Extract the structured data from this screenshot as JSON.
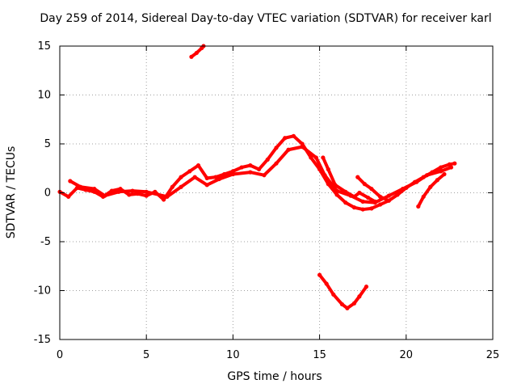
{
  "chart_data": {
    "type": "scatter",
    "title": "Day 259 of 2014, Sidereal Day-to-day VTEC variation (SDTVAR) for receiver karl",
    "xlabel": "GPS time / hours",
    "ylabel": "SDTVAR / TECUs",
    "xlim": [
      0,
      25
    ],
    "ylim": [
      -15,
      15
    ],
    "xticks": [
      0,
      5,
      10,
      15,
      20,
      25
    ],
    "yticks": [
      -15,
      -10,
      -5,
      0,
      5,
      10,
      15
    ],
    "xtick_labels": [
      "0",
      "5",
      "10",
      "15",
      "20",
      "25"
    ],
    "ytick_labels": [
      "-15",
      "-10",
      "-5",
      "0",
      "5",
      "10",
      "15"
    ],
    "grid": true,
    "legend": "none",
    "marker_color": "#ff0000",
    "series": [
      {
        "name": "main-track-a",
        "color": "#ff0000",
        "points": [
          [
            0,
            0.1
          ],
          [
            0.5,
            -0.4
          ],
          [
            1.0,
            0.5
          ],
          [
            1.5,
            0.3
          ],
          [
            2.0,
            0.1
          ],
          [
            2.5,
            -0.4
          ],
          [
            3.0,
            0.2
          ],
          [
            3.5,
            0.4
          ],
          [
            4.0,
            -0.2
          ],
          [
            4.5,
            -0.1
          ],
          [
            5.0,
            -0.3
          ],
          [
            5.5,
            0.1
          ],
          [
            6.0,
            -0.7
          ],
          [
            6.5,
            0.6
          ],
          [
            7.0,
            1.6
          ],
          [
            7.5,
            2.2
          ],
          [
            8.0,
            2.8
          ],
          [
            8.5,
            1.5
          ],
          [
            9.0,
            1.6
          ],
          [
            9.5,
            1.9
          ],
          [
            10.0,
            2.2
          ],
          [
            10.5,
            2.6
          ],
          [
            11.0,
            2.8
          ],
          [
            11.5,
            2.4
          ],
          [
            12.0,
            3.4
          ],
          [
            12.5,
            4.6
          ],
          [
            13.0,
            5.6
          ],
          [
            13.5,
            5.8
          ],
          [
            14.0,
            5.0
          ],
          [
            14.5,
            3.6
          ],
          [
            15.0,
            2.4
          ],
          [
            15.5,
            0.9
          ],
          [
            16.0,
            -0.2
          ],
          [
            16.5,
            -1.0
          ],
          [
            17.0,
            -1.5
          ],
          [
            17.5,
            -1.7
          ],
          [
            18.0,
            -1.6
          ],
          [
            18.5,
            -1.2
          ],
          [
            19.0,
            -0.8
          ],
          [
            19.5,
            -0.2
          ],
          [
            20.0,
            0.5
          ],
          [
            20.5,
            1.1
          ],
          [
            21.0,
            1.6
          ],
          [
            21.5,
            2.1
          ],
          [
            22.0,
            2.6
          ],
          [
            22.5,
            2.9
          ],
          [
            22.8,
            3.0
          ]
        ]
      },
      {
        "name": "main-track-b",
        "color": "#ff0000",
        "points": [
          [
            0.6,
            1.2
          ],
          [
            1.2,
            0.6
          ],
          [
            2.0,
            0.4
          ],
          [
            2.6,
            -0.3
          ],
          [
            3.4,
            0.1
          ],
          [
            4.2,
            0.2
          ],
          [
            5.0,
            0.1
          ],
          [
            6.2,
            -0.4
          ],
          [
            7.0,
            0.6
          ],
          [
            7.8,
            1.6
          ],
          [
            8.5,
            0.8
          ],
          [
            9.2,
            1.4
          ],
          [
            10.0,
            1.9
          ],
          [
            11.0,
            2.1
          ],
          [
            11.8,
            1.8
          ],
          [
            12.5,
            3.0
          ],
          [
            13.2,
            4.4
          ],
          [
            14.0,
            4.7
          ],
          [
            14.8,
            3.6
          ],
          [
            15.3,
            1.8
          ],
          [
            16.0,
            0.2
          ],
          [
            16.8,
            -0.3
          ],
          [
            17.5,
            -0.9
          ],
          [
            18.2,
            -1.0
          ],
          [
            19.0,
            -0.3
          ],
          [
            19.8,
            0.4
          ],
          [
            20.6,
            1.1
          ],
          [
            21.2,
            1.8
          ],
          [
            22.0,
            2.2
          ],
          [
            22.6,
            2.6
          ]
        ]
      },
      {
        "name": "late-spur",
        "color": "#ff0000",
        "points": [
          [
            15.2,
            3.6
          ],
          [
            15.5,
            2.4
          ],
          [
            15.9,
            0.8
          ],
          [
            16.5,
            0.1
          ],
          [
            17.0,
            -0.4
          ],
          [
            17.3,
            0.0
          ],
          [
            17.8,
            -0.5
          ],
          [
            18.2,
            -0.9
          ]
        ]
      },
      {
        "name": "evening-spur",
        "color": "#ff0000",
        "points": [
          [
            17.2,
            1.6
          ],
          [
            17.6,
            0.9
          ],
          [
            18.0,
            0.4
          ],
          [
            18.5,
            -0.4
          ],
          [
            19.0,
            -0.8
          ]
        ]
      },
      {
        "name": "dip-spur",
        "color": "#ff0000",
        "points": [
          [
            20.7,
            -1.4
          ],
          [
            21.0,
            -0.4
          ],
          [
            21.4,
            0.6
          ],
          [
            21.8,
            1.3
          ],
          [
            22.2,
            1.9
          ]
        ]
      },
      {
        "name": "upper-arc",
        "color": "#ff0000",
        "points": [
          [
            7.6,
            13.9
          ],
          [
            7.9,
            14.3
          ],
          [
            8.2,
            14.8
          ],
          [
            8.3,
            15.0
          ]
        ]
      },
      {
        "name": "lower-arc",
        "color": "#ff0000",
        "points": [
          [
            15.0,
            -8.4
          ],
          [
            15.4,
            -9.3
          ],
          [
            15.8,
            -10.4
          ],
          [
            16.3,
            -11.4
          ],
          [
            16.6,
            -11.8
          ],
          [
            17.0,
            -11.3
          ],
          [
            17.3,
            -10.6
          ],
          [
            17.7,
            -9.6
          ]
        ]
      }
    ]
  }
}
